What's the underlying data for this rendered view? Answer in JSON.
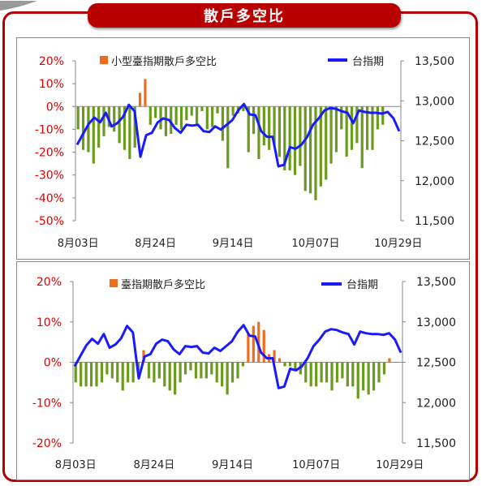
{
  "page": {
    "title": "散戶多空比"
  },
  "colors": {
    "bar_positive": "#f26b1d",
    "bar_negative": "#6a9a1e",
    "index_line": "#1a1aff",
    "left_axis_text": "#e00000",
    "right_axis_text": "#222222",
    "frame": "#b40000"
  },
  "chart_data": [
    {
      "type": "bar+line",
      "legend": [
        {
          "label": "小型臺指期散戶多空比",
          "type": "bar"
        },
        {
          "label": "台指期",
          "type": "line"
        }
      ],
      "y_left": {
        "ticks": [
          "20%",
          "10%",
          "0%",
          "-10%",
          "-20%",
          "-30%",
          "-40%",
          "-50%"
        ],
        "range": [
          -50,
          20
        ],
        "unit": "%"
      },
      "y_right": {
        "ticks": [
          "13,500",
          "13,000",
          "12,500",
          "12,000",
          "11,500"
        ],
        "range": [
          11500,
          13500
        ]
      },
      "x_labels": [
        {
          "label": "8月03日",
          "index": 0
        },
        {
          "label": "8月24日",
          "index": 15
        },
        {
          "label": "9月14日",
          "index": 30
        },
        {
          "label": "10月07日",
          "index": 46
        },
        {
          "label": "10月29日",
          "index": 62
        }
      ],
      "series": [
        {
          "name": "小型臺指期散戶多空比",
          "type": "bar",
          "values": [
            -10,
            -19,
            -20,
            -25,
            -18,
            -13,
            -9,
            -11,
            -16,
            -19,
            -23,
            -18,
            6,
            12,
            -8,
            -5,
            -10,
            -13,
            -12,
            -8,
            -10,
            -6,
            -4,
            -8,
            -2,
            -10,
            -9,
            -3,
            -15,
            -27,
            -4,
            -3,
            -2,
            -20,
            -12,
            -23,
            -17,
            -19,
            -17,
            -22,
            -28,
            -28,
            -30,
            -26,
            -37,
            -38,
            -41,
            -35,
            -32,
            -25,
            -20,
            -10,
            -22,
            -19,
            -16,
            -27,
            -19,
            -19,
            -10,
            -8
          ],
          "color": "#f26b1d"
        },
        {
          "name": "台指期",
          "type": "line",
          "values": [
            12450,
            12580,
            12710,
            12790,
            12730,
            12850,
            12680,
            12720,
            12800,
            12950,
            12870,
            12300,
            12570,
            12600,
            12730,
            12780,
            12760,
            12660,
            12600,
            12700,
            12690,
            12700,
            12620,
            12610,
            12680,
            12640,
            12700,
            12760,
            12880,
            12960,
            12830,
            12820,
            12620,
            12550,
            12550,
            12180,
            12200,
            12420,
            12400,
            12450,
            12550,
            12700,
            12780,
            12880,
            12910,
            12900,
            12870,
            12850,
            12720,
            12880,
            12860,
            12850,
            12850,
            12840,
            12860,
            12780,
            12620
          ],
          "color": "#1a1aff"
        }
      ]
    },
    {
      "type": "bar+line",
      "legend": [
        {
          "label": "臺指期散戶多空比",
          "type": "bar"
        },
        {
          "label": "台指期",
          "type": "line"
        }
      ],
      "y_left": {
        "ticks": [
          "20%",
          "10%",
          "0%",
          "-10%",
          "-20%"
        ],
        "range": [
          -20,
          20
        ],
        "unit": "%"
      },
      "y_right": {
        "ticks": [
          "13,500",
          "13,000",
          "12,500",
          "12,000",
          "11,500"
        ],
        "range": [
          11500,
          13500
        ]
      },
      "x_labels": [
        {
          "label": "8月03日",
          "index": 0
        },
        {
          "label": "8月24日",
          "index": 15
        },
        {
          "label": "9月14日",
          "index": 30
        },
        {
          "label": "10月07日",
          "index": 46
        },
        {
          "label": "10月29日",
          "index": 62
        }
      ],
      "series": [
        {
          "name": "臺指期散戶多空比",
          "type": "bar",
          "values": [
            -5,
            -6,
            -6,
            -6,
            -6,
            -5,
            -3,
            -4,
            -5,
            -7,
            -5,
            -5,
            -2,
            3,
            -4,
            -5,
            -4,
            -6,
            -7,
            -8,
            -5,
            -3,
            -2,
            -4,
            -4,
            -4,
            -3,
            -5,
            -6,
            -8,
            -5,
            -4,
            -1,
            7,
            9,
            10,
            8,
            2,
            3,
            1,
            -1,
            -1,
            -2,
            -3,
            -5,
            -6,
            -6,
            -5,
            -5,
            -7,
            -5,
            -4,
            -6,
            -6,
            -9,
            -7,
            -8,
            -7,
            -5,
            -3,
            1
          ],
          "color": "#f26b1d"
        },
        {
          "name": "台指期",
          "type": "line",
          "values": [
            12450,
            12580,
            12710,
            12790,
            12730,
            12850,
            12680,
            12720,
            12800,
            12950,
            12870,
            12300,
            12570,
            12600,
            12730,
            12780,
            12760,
            12660,
            12600,
            12700,
            12690,
            12700,
            12620,
            12610,
            12680,
            12640,
            12700,
            12760,
            12880,
            12960,
            12830,
            12820,
            12620,
            12550,
            12550,
            12180,
            12200,
            12420,
            12400,
            12450,
            12550,
            12700,
            12780,
            12880,
            12910,
            12900,
            12870,
            12850,
            12720,
            12880,
            12860,
            12850,
            12850,
            12840,
            12860,
            12780,
            12620
          ],
          "color": "#1a1aff"
        }
      ]
    }
  ]
}
